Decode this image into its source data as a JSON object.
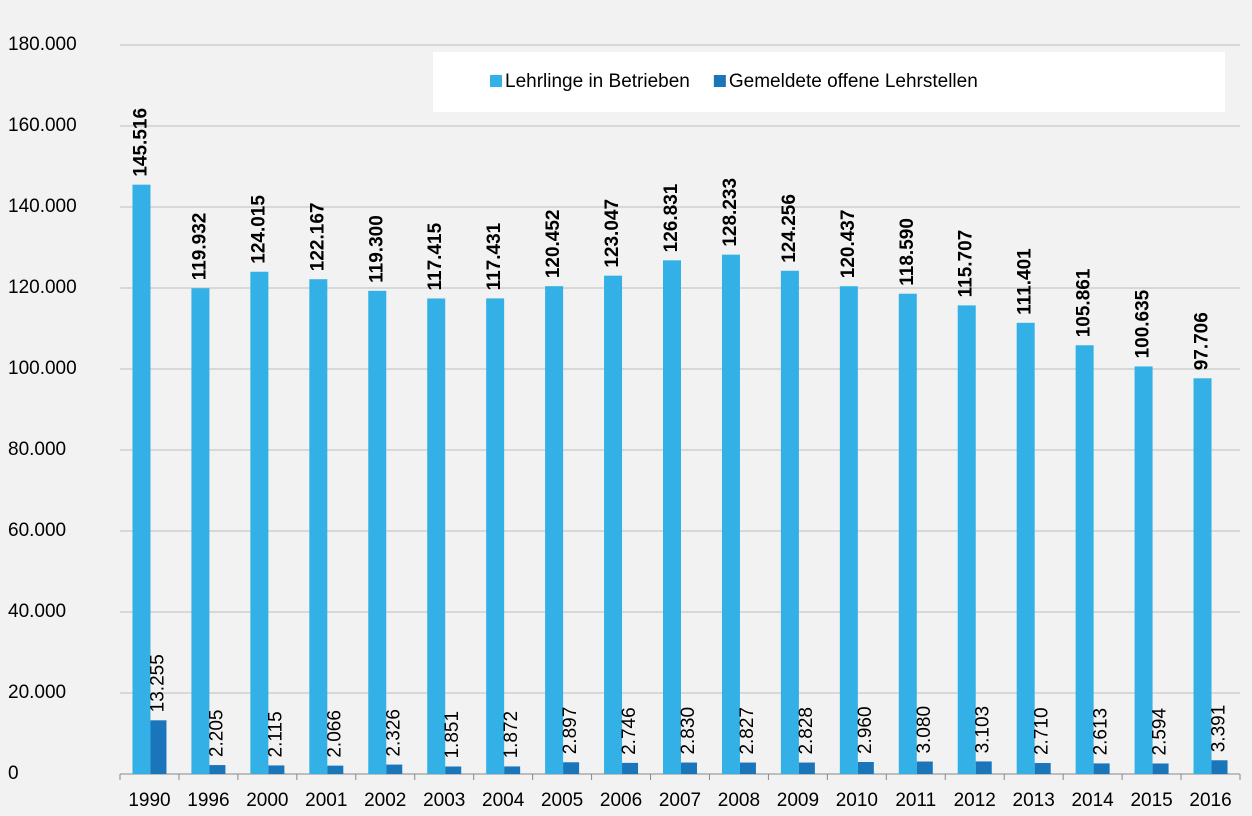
{
  "chart_data": {
    "type": "bar",
    "categories": [
      "1990",
      "1996",
      "2000",
      "2001",
      "2002",
      "2003",
      "2004",
      "2005",
      "2006",
      "2007",
      "2008",
      "2009",
      "2010",
      "2011",
      "2012",
      "2013",
      "2014",
      "2015",
      "2016"
    ],
    "series": [
      {
        "name": "Lehrlinge in Betrieben",
        "color": "#33b0e6",
        "values": [
          145516,
          119932,
          124015,
          122167,
          119300,
          117415,
          117431,
          120452,
          123047,
          126831,
          128233,
          124256,
          120437,
          118590,
          115707,
          111401,
          105861,
          100635,
          97706
        ],
        "value_labels": [
          "145.516",
          "119.932",
          "124.015",
          "122.167",
          "119.300",
          "117.415",
          "117.431",
          "120.452",
          "123.047",
          "126.831",
          "128.233",
          "124.256",
          "120.437",
          "118.590",
          "115.707",
          "111.401",
          "105.861",
          "100.635",
          "97.706"
        ]
      },
      {
        "name": "Gemeldete offene Lehrstellen",
        "color": "#1b75bb",
        "values": [
          13255,
          2205,
          2115,
          2066,
          2326,
          1851,
          1872,
          2897,
          2746,
          2830,
          2827,
          2828,
          2960,
          3080,
          3103,
          2710,
          2613,
          2594,
          3391
        ],
        "value_labels": [
          "13.255",
          "2.205",
          "2.115",
          "2.066",
          "2.326",
          "1.851",
          "1.872",
          "2.897",
          "2.746",
          "2.830",
          "2.827",
          "2.828",
          "2.960",
          "3.080",
          "3.103",
          "2.710",
          "2.613",
          "2.594",
          "3.391"
        ]
      }
    ],
    "ylim": [
      0,
      180000
    ],
    "yticks": [
      0,
      {
        "value": 20000,
        "label": "20.000"
      },
      {
        "value": 40000,
        "label": "40.000"
      },
      {
        "value": 60000,
        "label": "60.000"
      },
      {
        "value": 80000,
        "label": "80.000"
      },
      {
        "value": 100000,
        "label": "100.000"
      },
      {
        "value": 120000,
        "label": "120.000"
      },
      {
        "value": 140000,
        "label": "140.000"
      },
      {
        "value": 160000,
        "label": "160.000"
      },
      {
        "value": 180000,
        "label": "180.000"
      }
    ],
    "grid": true,
    "legend": "top"
  }
}
